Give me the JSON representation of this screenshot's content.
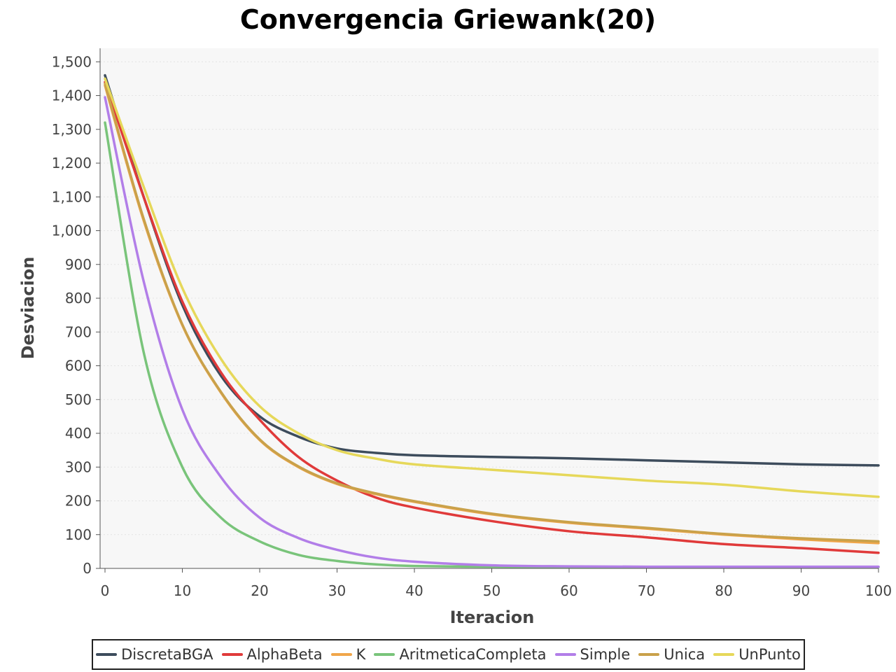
{
  "chart_data": {
    "type": "line",
    "title": "Convergencia Griewank(20)",
    "xlabel": "Iteracion",
    "ylabel": "Desviacion",
    "xlim": [
      0,
      100
    ],
    "ylim": [
      0,
      1540
    ],
    "xticks": [
      0,
      10,
      20,
      30,
      40,
      50,
      60,
      70,
      80,
      90,
      100
    ],
    "yticks": [
      0,
      100,
      200,
      300,
      400,
      500,
      600,
      700,
      800,
      900,
      1000,
      1100,
      1200,
      1300,
      1400,
      1500
    ],
    "ytick_labels": [
      "0",
      "100",
      "200",
      "300",
      "400",
      "500",
      "600",
      "700",
      "800",
      "900",
      "1,000",
      "1,100",
      "1,200",
      "1,300",
      "1,400",
      "1,500"
    ],
    "grid": true,
    "legend_position": "bottom",
    "background_color": "#f7f7f7",
    "series": [
      {
        "name": "DiscretaBGA",
        "color": "#3d4c5c",
        "x": [
          0,
          5,
          10,
          15,
          20,
          25,
          30,
          35,
          40,
          50,
          60,
          70,
          80,
          90,
          100
        ],
        "values": [
          1460,
          1100,
          780,
          570,
          450,
          390,
          355,
          342,
          335,
          330,
          326,
          320,
          314,
          308,
          305
        ]
      },
      {
        "name": "AlphaBeta",
        "color": "#e03a3a",
        "x": [
          0,
          5,
          10,
          15,
          20,
          25,
          30,
          35,
          40,
          50,
          60,
          70,
          80,
          90,
          100
        ],
        "values": [
          1440,
          1100,
          790,
          580,
          440,
          330,
          260,
          210,
          180,
          140,
          110,
          92,
          72,
          60,
          46
        ]
      },
      {
        "name": "K",
        "color": "#f0a64a",
        "x": [
          0,
          5,
          10,
          15,
          20,
          25,
          30,
          35,
          40,
          50,
          60,
          70,
          80,
          90,
          100
        ],
        "values": [
          1430,
          1030,
          720,
          520,
          380,
          300,
          250,
          220,
          197,
          160,
          135,
          118,
          100,
          86,
          75
        ]
      },
      {
        "name": "AritmeticaCompleta",
        "color": "#79c47a",
        "x": [
          0,
          5,
          10,
          15,
          20,
          25,
          30,
          35,
          40,
          50,
          60,
          70,
          80,
          90,
          100
        ],
        "values": [
          1320,
          640,
          300,
          150,
          80,
          40,
          22,
          12,
          7,
          5,
          4,
          4,
          4,
          4,
          4
        ]
      },
      {
        "name": "Simple",
        "color": "#b27ee8",
        "x": [
          0,
          5,
          10,
          15,
          20,
          25,
          30,
          35,
          40,
          50,
          60,
          70,
          80,
          90,
          100
        ],
        "values": [
          1395,
          850,
          470,
          270,
          150,
          90,
          55,
          32,
          20,
          9,
          6,
          5,
          5,
          5,
          5
        ]
      },
      {
        "name": "Unica",
        "color": "#c9a14a",
        "x": [
          0,
          5,
          10,
          15,
          20,
          25,
          30,
          35,
          40,
          50,
          60,
          70,
          80,
          90,
          100
        ],
        "values": [
          1435,
          1035,
          722,
          522,
          382,
          302,
          252,
          222,
          199,
          162,
          137,
          120,
          102,
          89,
          80
        ]
      },
      {
        "name": "UnPunto",
        "color": "#e6d85a",
        "x": [
          0,
          5,
          10,
          15,
          20,
          25,
          30,
          35,
          40,
          50,
          60,
          70,
          80,
          90,
          100
        ],
        "values": [
          1450,
          1130,
          830,
          620,
          480,
          400,
          350,
          325,
          308,
          292,
          276,
          260,
          248,
          228,
          212
        ]
      }
    ]
  }
}
